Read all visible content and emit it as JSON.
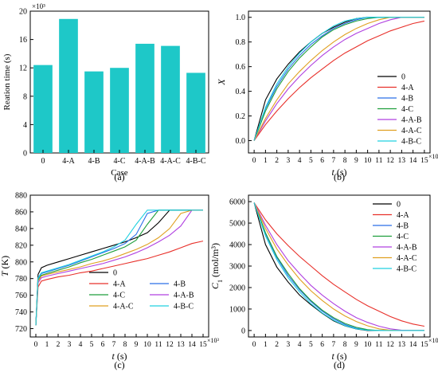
{
  "chart_data": [
    {
      "panel_label": "(a)",
      "type": "bar",
      "xlabel": "Case",
      "ylabel": "Reation time (s)",
      "multiplier": "×10³",
      "ylim": [
        0,
        20
      ],
      "yticks": [
        "0",
        "4",
        "8",
        "12",
        "16",
        "20"
      ],
      "categories": [
        "0",
        "4-A",
        "4-B",
        "4-C",
        "4-A-B",
        "4-A-C",
        "4-B-C"
      ],
      "values": [
        12.4,
        18.9,
        11.5,
        12.0,
        15.4,
        15.1,
        11.3
      ],
      "color": "#1ec8c8"
    },
    {
      "panel_label": "(b)",
      "type": "line",
      "xlabel": "t (s)",
      "ylabel": "X",
      "x_multiplier": "×10³",
      "xlim": [
        -0.5,
        15.5
      ],
      "ylim": [
        -0.1,
        1.05
      ],
      "xticks": [
        "0",
        "1",
        "2",
        "3",
        "4",
        "5",
        "6",
        "7",
        "8",
        "9",
        "10",
        "11",
        "12",
        "13",
        "14",
        "15"
      ],
      "yticks": [
        "0.0",
        "0.2",
        "0.4",
        "0.6",
        "0.8",
        "1.0"
      ],
      "x": [
        0,
        1,
        2,
        3,
        4,
        5,
        6,
        7,
        8,
        9,
        10,
        11,
        12,
        13,
        14,
        15
      ],
      "series": [
        {
          "name": "0",
          "color": "#000000",
          "values": [
            0,
            0.33,
            0.5,
            0.62,
            0.72,
            0.8,
            0.87,
            0.92,
            0.96,
            0.99,
            1.0,
            1.0,
            1.0,
            1.0,
            1.0,
            1.0
          ]
        },
        {
          "name": "4-A",
          "color": "#e8302a",
          "values": [
            0,
            0.13,
            0.24,
            0.34,
            0.43,
            0.51,
            0.58,
            0.65,
            0.71,
            0.76,
            0.81,
            0.85,
            0.89,
            0.92,
            0.95,
            0.97
          ]
        },
        {
          "name": "4-B",
          "color": "#2a6fe8",
          "values": [
            0,
            0.26,
            0.44,
            0.58,
            0.69,
            0.78,
            0.85,
            0.91,
            0.95,
            0.98,
            1.0,
            1.0,
            1.0,
            1.0,
            1.0,
            1.0
          ]
        },
        {
          "name": "4-C",
          "color": "#1e9e3c",
          "values": [
            0,
            0.24,
            0.42,
            0.56,
            0.67,
            0.76,
            0.84,
            0.9,
            0.94,
            0.97,
            0.99,
            1.0,
            1.0,
            1.0,
            1.0,
            1.0
          ]
        },
        {
          "name": "4-A-B",
          "color": "#b040e0",
          "values": [
            0,
            0.16,
            0.3,
            0.42,
            0.52,
            0.61,
            0.69,
            0.76,
            0.82,
            0.87,
            0.91,
            0.95,
            0.98,
            1.0,
            1.0,
            1.0
          ]
        },
        {
          "name": "4-A-C",
          "color": "#e0a020",
          "values": [
            0,
            0.18,
            0.33,
            0.46,
            0.56,
            0.65,
            0.73,
            0.8,
            0.86,
            0.91,
            0.95,
            0.98,
            1.0,
            1.0,
            1.0,
            1.0
          ]
        },
        {
          "name": "4-B-C",
          "color": "#20d0e0",
          "values": [
            0,
            0.27,
            0.46,
            0.6,
            0.71,
            0.8,
            0.87,
            0.93,
            0.97,
            0.99,
            1.0,
            1.0,
            1.0,
            1.0,
            1.0,
            1.0
          ]
        }
      ]
    },
    {
      "panel_label": "(c)",
      "type": "line",
      "xlabel": "t (s)",
      "ylabel": "T (K)",
      "x_multiplier": "×10³",
      "xlim": [
        -0.5,
        15.5
      ],
      "ylim": [
        710,
        880
      ],
      "xticks": [
        "0",
        "1",
        "2",
        "3",
        "4",
        "5",
        "6",
        "7",
        "8",
        "9",
        "10",
        "11",
        "12",
        "13",
        "14",
        "15"
      ],
      "yticks": [
        "720",
        "740",
        "760",
        "780",
        "800",
        "820",
        "840",
        "860",
        "880"
      ],
      "x": [
        0,
        0.2,
        0.5,
        1,
        2,
        3,
        4,
        5,
        6,
        7,
        8,
        9,
        10,
        11,
        12,
        13,
        14,
        15
      ],
      "series": [
        {
          "name": "0",
          "color": "#000000",
          "values": [
            724,
            785,
            793,
            796,
            800,
            804,
            808,
            812,
            816,
            820,
            824,
            829,
            835,
            847,
            862,
            862,
            862,
            862
          ]
        },
        {
          "name": "4-A",
          "color": "#e8302a",
          "values": [
            724,
            770,
            777,
            779,
            782,
            784,
            787,
            789,
            792,
            795,
            798,
            801,
            804,
            808,
            812,
            817,
            822,
            825
          ]
        },
        {
          "name": "4-B",
          "color": "#2a6fe8",
          "values": [
            724,
            780,
            786,
            788,
            792,
            796,
            801,
            806,
            811,
            816,
            822,
            833,
            858,
            862,
            862,
            862,
            862,
            862
          ]
        },
        {
          "name": "4-C",
          "color": "#1e9e3c",
          "values": [
            724,
            778,
            784,
            786,
            790,
            794,
            799,
            803,
            808,
            813,
            818,
            826,
            845,
            862,
            862,
            862,
            862,
            862
          ]
        },
        {
          "name": "4-A-B",
          "color": "#b040e0",
          "values": [
            724,
            775,
            781,
            783,
            786,
            789,
            792,
            795,
            798,
            802,
            806,
            811,
            817,
            824,
            832,
            843,
            862,
            862
          ]
        },
        {
          "name": "4-A-C",
          "color": "#e0a020",
          "values": [
            724,
            777,
            783,
            785,
            788,
            791,
            794,
            798,
            801,
            805,
            810,
            815,
            821,
            829,
            840,
            858,
            862,
            862
          ]
        },
        {
          "name": "4-B-C",
          "color": "#20d0e0",
          "values": [
            724,
            781,
            787,
            789,
            793,
            797,
            802,
            807,
            812,
            818,
            826,
            845,
            862,
            862,
            862,
            862,
            862,
            862
          ]
        }
      ]
    },
    {
      "panel_label": "(d)",
      "type": "line",
      "xlabel": "t (s)",
      "ylabel": "C",
      "ylabel_sub": "1",
      "ylabel_unit": " (mol/m³)",
      "x_multiplier": "×10³",
      "xlim": [
        -0.5,
        15.5
      ],
      "ylim": [
        -300,
        6300
      ],
      "xticks": [
        "0",
        "1",
        "2",
        "3",
        "4",
        "5",
        "6",
        "7",
        "8",
        "9",
        "10",
        "11",
        "12",
        "13",
        "14",
        "15"
      ],
      "yticks": [
        "0",
        "1000",
        "2000",
        "3000",
        "4000",
        "5000",
        "6000"
      ],
      "x": [
        0,
        1,
        2,
        3,
        4,
        5,
        6,
        7,
        8,
        9,
        10,
        11,
        12,
        13,
        14,
        15
      ],
      "series": [
        {
          "name": "0",
          "color": "#000000",
          "values": [
            5950,
            4000,
            2950,
            2250,
            1650,
            1200,
            800,
            450,
            220,
            70,
            0,
            0,
            0,
            0,
            0,
            0
          ]
        },
        {
          "name": "4-A",
          "color": "#e8302a",
          "values": [
            5950,
            5150,
            4500,
            3950,
            3450,
            3000,
            2550,
            2150,
            1800,
            1450,
            1150,
            900,
            650,
            450,
            300,
            200
          ]
        },
        {
          "name": "4-B",
          "color": "#2a6fe8",
          "values": [
            5950,
            4500,
            3400,
            2550,
            1900,
            1350,
            900,
            550,
            280,
            100,
            20,
            0,
            0,
            0,
            0,
            0
          ]
        },
        {
          "name": "4-C",
          "color": "#1e9e3c",
          "values": [
            5950,
            4550,
            3450,
            2650,
            1950,
            1400,
            950,
            600,
            330,
            150,
            40,
            0,
            0,
            0,
            0,
            0
          ]
        },
        {
          "name": "4-A-B",
          "color": "#b040e0",
          "values": [
            5950,
            4900,
            4000,
            3250,
            2650,
            2100,
            1650,
            1250,
            900,
            600,
            380,
            200,
            80,
            10,
            0,
            0
          ]
        },
        {
          "name": "4-A-C",
          "color": "#e0a020",
          "values": [
            5950,
            4750,
            3800,
            3050,
            2400,
            1850,
            1400,
            1000,
            680,
            420,
            220,
            80,
            10,
            0,
            0,
            0
          ]
        },
        {
          "name": "4-B-C",
          "color": "#20d0e0",
          "values": [
            5950,
            4400,
            3300,
            2450,
            1800,
            1250,
            820,
            480,
            230,
            80,
            10,
            0,
            0,
            0,
            0,
            0
          ]
        }
      ]
    }
  ]
}
